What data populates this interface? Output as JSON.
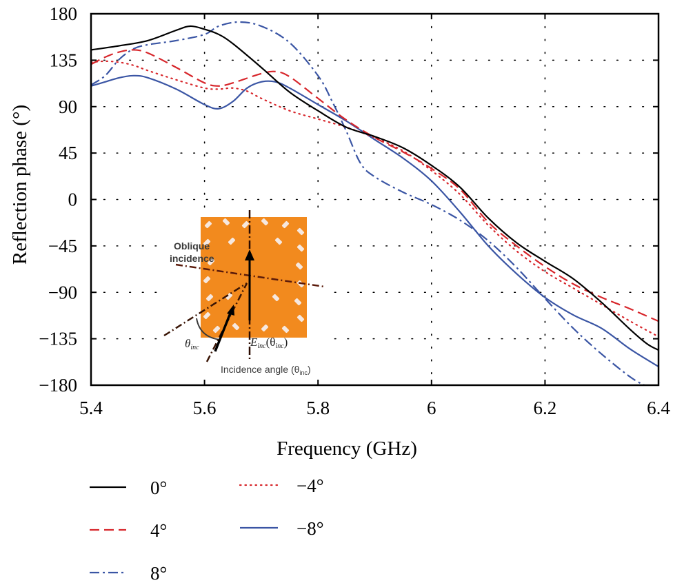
{
  "chart_data": {
    "type": "line",
    "title": "",
    "xlabel": "Frequency (GHz)",
    "ylabel": "Reflection phase (°)",
    "xlim": [
      5.4,
      6.4
    ],
    "ylim": [
      -180,
      180
    ],
    "xticks": [
      5.4,
      5.6,
      5.8,
      6.0,
      6.2,
      6.4
    ],
    "xtick_labels": [
      "5.4",
      "5.6",
      "5.8",
      "6",
      "6.2",
      "6.4"
    ],
    "yticks": [
      180,
      135,
      90,
      45,
      0,
      -45,
      -90,
      -135,
      -180
    ],
    "ytick_labels": [
      "180",
      "135",
      "90",
      "45",
      "0",
      "−45",
      "−90",
      "−135",
      "−180"
    ],
    "grid": true,
    "grid_style": "dotted",
    "legend_position": "below",
    "series": [
      {
        "name": "0°",
        "legend_label": "0°",
        "color": "#000000",
        "style": "solid",
        "x": [
          5.4,
          5.45,
          5.5,
          5.55,
          5.575,
          5.6,
          5.625,
          5.65,
          5.7,
          5.75,
          5.8,
          5.85,
          5.9,
          5.95,
          6.0,
          6.05,
          6.1,
          6.15,
          6.2,
          6.25,
          6.3,
          6.35,
          6.38,
          6.4
        ],
        "y": [
          145,
          149,
          154,
          164,
          168,
          165,
          160,
          151,
          128,
          104,
          86,
          70,
          61,
          50,
          33,
          12,
          -18,
          -42,
          -60,
          -77,
          -100,
          -126,
          -140,
          -146
        ]
      },
      {
        "name": "4°",
        "legend_label": "4°",
        "color": "#d7262b",
        "style": "dashed",
        "x": [
          5.4,
          5.425,
          5.45,
          5.475,
          5.5,
          5.55,
          5.6,
          5.625,
          5.65,
          5.7,
          5.725,
          5.75,
          5.8,
          5.85,
          5.9,
          5.95,
          6.0,
          6.05,
          6.1,
          6.15,
          6.2,
          6.25,
          6.3,
          6.35,
          6.4
        ],
        "y": [
          131,
          138,
          143,
          145,
          142,
          128,
          113,
          110,
          113,
          122,
          124,
          119,
          98,
          77,
          60,
          46,
          30,
          10,
          -22,
          -45,
          -65,
          -82,
          -95,
          -106,
          -118
        ]
      },
      {
        "name": "8°",
        "legend_label": "8°",
        "color": "#3a55a4",
        "style": "dashdot",
        "x": [
          5.4,
          5.425,
          5.45,
          5.475,
          5.5,
          5.55,
          5.6,
          5.625,
          5.66,
          5.7,
          5.75,
          5.8,
          5.825,
          5.85,
          5.875,
          5.9,
          5.95,
          6.0,
          6.05,
          6.1,
          6.15,
          6.2,
          6.25,
          6.3,
          6.35,
          6.375
        ],
        "y": [
          111,
          120,
          136,
          146,
          150,
          154,
          160,
          168,
          172,
          168,
          152,
          120,
          95,
          66,
          35,
          22,
          7,
          -5,
          -20,
          -40,
          -66,
          -96,
          -125,
          -150,
          -172,
          -180
        ]
      },
      {
        "name": "-4°",
        "legend_label": "−4°",
        "color": "#d7262b",
        "style": "dotted",
        "x": [
          5.4,
          5.425,
          5.45,
          5.475,
          5.5,
          5.55,
          5.6,
          5.625,
          5.65,
          5.675,
          5.7,
          5.75,
          5.8,
          5.85,
          5.9,
          5.95,
          6.0,
          6.05,
          6.1,
          6.15,
          6.2,
          6.25,
          6.3,
          6.35,
          6.4
        ],
        "y": [
          133,
          134,
          133,
          130,
          125,
          116,
          108,
          107,
          108,
          105,
          98,
          86,
          78,
          70,
          60,
          47,
          28,
          5,
          -25,
          -50,
          -70,
          -86,
          -102,
          -118,
          -133
        ]
      },
      {
        "name": "-8°",
        "legend_label": "−8°",
        "color": "#3a55a4",
        "style": "solid",
        "x": [
          5.4,
          5.425,
          5.45,
          5.475,
          5.5,
          5.55,
          5.6,
          5.625,
          5.65,
          5.675,
          5.7,
          5.725,
          5.75,
          5.8,
          5.85,
          5.9,
          5.95,
          6.0,
          6.05,
          6.1,
          6.15,
          6.2,
          6.25,
          6.3,
          6.35,
          6.4
        ],
        "y": [
          110,
          114,
          118,
          120,
          118,
          107,
          92,
          88,
          95,
          108,
          114,
          114,
          108,
          92,
          76,
          58,
          40,
          18,
          -12,
          -45,
          -72,
          -95,
          -112,
          -125,
          -145,
          -162
        ]
      }
    ],
    "inset": {
      "description": "Orange metasurface unit cell schematic with incidence geometry",
      "texts": {
        "oblique_line1": "Oblique",
        "oblique_line2": "incidence",
        "theta": "θ",
        "theta_sub": "inc",
        "e_field": "E",
        "e_field_sub": "inc",
        "e_field_arg": "(θ",
        "e_field_arg_sub": "inc",
        "e_field_close": ")",
        "caption": "Incidence angle (θ",
        "caption_sub": "inc",
        "caption_close": ")"
      },
      "fill_color": "#f28a1e"
    }
  }
}
